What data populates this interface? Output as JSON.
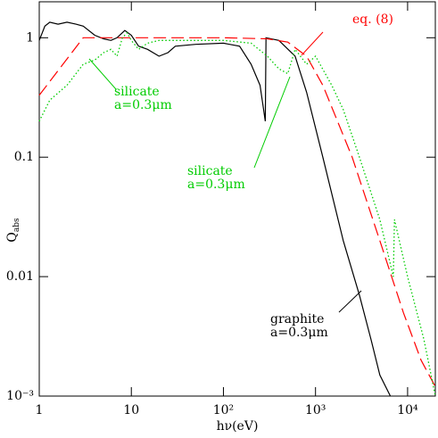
{
  "chart_data": {
    "type": "line",
    "xlabel": "hν(eV)",
    "ylabel": "Q",
    "ylabel_sub": "abs",
    "xscale": "log",
    "yscale": "log",
    "xlim": [
      1,
      20000
    ],
    "ylim": [
      0.001,
      2
    ],
    "xticks": [
      1,
      10,
      {
        "value": 100,
        "label": "10²"
      },
      {
        "value": 1000,
        "label": "10³"
      },
      {
        "value": 10000,
        "label": "10⁴"
      }
    ],
    "yticks": [
      1,
      0.1,
      0.01,
      {
        "value": 0.001,
        "label": "10⁻³"
      }
    ],
    "series": [
      {
        "name": "graphite",
        "color": "#000000",
        "style": "solid",
        "x": [
          1,
          1.15,
          1.3,
          1.6,
          2,
          2.5,
          3,
          4,
          5,
          6,
          7,
          8.5,
          10,
          12,
          15,
          20,
          25,
          30,
          50,
          100,
          150,
          200,
          250,
          285,
          290,
          400,
          600,
          800,
          1200,
          2000,
          3000,
          4000,
          5000,
          6500
        ],
        "y": [
          0.95,
          1.25,
          1.35,
          1.3,
          1.35,
          1.3,
          1.25,
          1.05,
          0.98,
          0.95,
          1.0,
          1.15,
          1.05,
          0.85,
          0.8,
          0.7,
          0.75,
          0.85,
          0.88,
          0.9,
          0.85,
          0.6,
          0.4,
          0.2,
          1.0,
          0.95,
          0.7,
          0.35,
          0.1,
          0.02,
          0.007,
          0.003,
          0.0015,
          0.001
        ]
      },
      {
        "name": "eq. (8)",
        "color": "#ff0000",
        "style": "dashed",
        "x": [
          1,
          3,
          100,
          300,
          500,
          800,
          1200,
          2500,
          5000,
          9000,
          14000,
          20000
        ],
        "y": [
          0.33,
          1,
          1,
          0.98,
          0.92,
          0.7,
          0.4,
          0.1,
          0.02,
          0.005,
          0.002,
          0.0012
        ]
      },
      {
        "name": "silicate",
        "color": "#00cc00",
        "style": "dotted",
        "x": [
          1,
          1.3,
          2,
          3,
          4,
          5,
          6,
          7,
          8,
          9,
          10,
          12,
          15,
          20,
          30,
          100,
          200,
          300,
          400,
          500,
          600,
          800,
          1000,
          1500,
          2000,
          3000,
          5000,
          7000,
          7200,
          10000,
          15000,
          20000
        ],
        "y": [
          0.2,
          0.3,
          0.4,
          0.6,
          0.65,
          0.75,
          0.8,
          0.7,
          1.0,
          1.1,
          0.95,
          0.8,
          0.9,
          0.95,
          0.95,
          0.95,
          0.9,
          0.7,
          0.55,
          0.5,
          0.8,
          0.6,
          0.7,
          0.4,
          0.25,
          0.1,
          0.03,
          0.01,
          0.03,
          0.01,
          0.003,
          0.001
        ]
      }
    ],
    "annotations": [
      {
        "lines": [
          "eq. (8)"
        ],
        "color": "#ff0000"
      },
      {
        "lines": [
          "silicate",
          "a=0.3μm"
        ],
        "color": "#00cc00"
      },
      {
        "lines": [
          "silicate",
          "a=0.3μm"
        ],
        "color": "#00cc00"
      },
      {
        "lines": [
          "graphite",
          "a=0.3μm"
        ],
        "color": "#000000"
      }
    ]
  }
}
